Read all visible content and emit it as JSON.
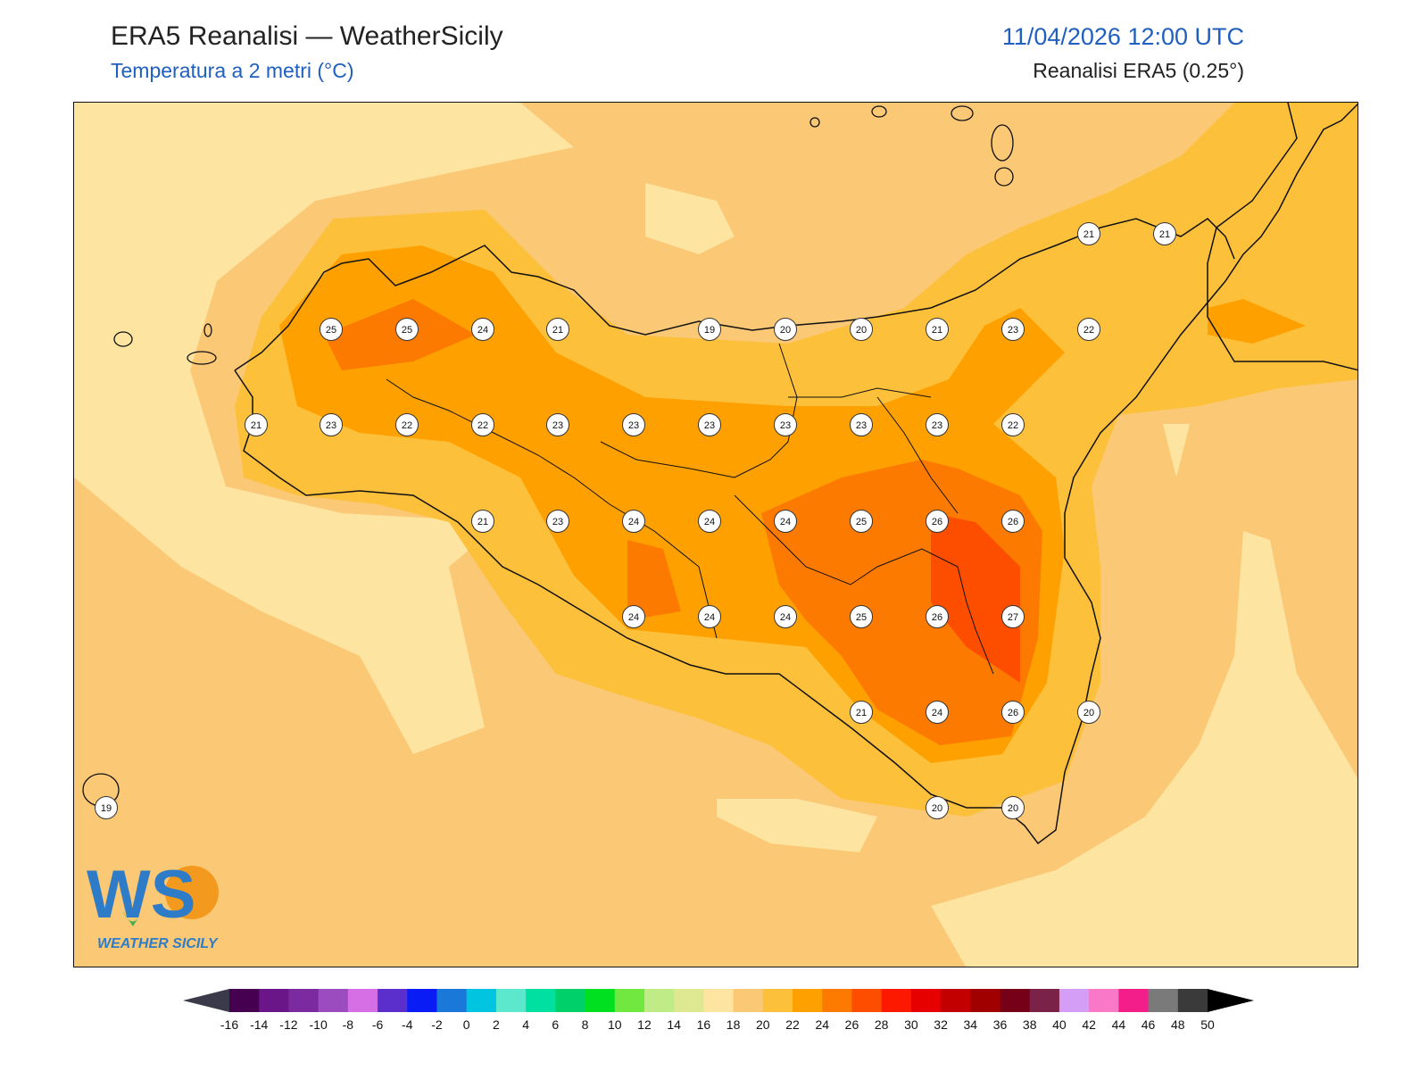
{
  "header": {
    "title": "ERA5 Reanalisi — WeatherSicily",
    "subtitle": "Temperatura a 2 metri (°C)",
    "datetime": "11/04/2026 12:00 UTC",
    "model": "Reanalisi ERA5 (0.25°)"
  },
  "map": {
    "region": "Sicily",
    "field": "2m temperature",
    "background_color": "#fbc875",
    "coast_color": "#111111",
    "station_values": [
      {
        "value": "25"
      },
      {
        "value": "25"
      },
      {
        "value": "24"
      },
      {
        "value": "21"
      },
      {
        "value": "19"
      },
      {
        "value": "20"
      },
      {
        "value": "20"
      },
      {
        "value": "21"
      },
      {
        "value": "23"
      },
      {
        "value": "22"
      },
      {
        "value": "21"
      },
      {
        "value": "23"
      },
      {
        "value": "22"
      },
      {
        "value": "22"
      },
      {
        "value": "23"
      },
      {
        "value": "23"
      },
      {
        "value": "23"
      },
      {
        "value": "23"
      },
      {
        "value": "23"
      },
      {
        "value": "23"
      },
      {
        "value": "22"
      },
      {
        "value": "21"
      },
      {
        "value": "23"
      },
      {
        "value": "24"
      },
      {
        "value": "24"
      },
      {
        "value": "24"
      },
      {
        "value": "25"
      },
      {
        "value": "26"
      },
      {
        "value": "26"
      },
      {
        "value": "24"
      },
      {
        "value": "24"
      },
      {
        "value": "24"
      },
      {
        "value": "25"
      },
      {
        "value": "26"
      },
      {
        "value": "27"
      },
      {
        "value": "21"
      },
      {
        "value": "24"
      },
      {
        "value": "26"
      },
      {
        "value": "20"
      },
      {
        "value": "20"
      },
      {
        "value": "20"
      },
      {
        "value": "21"
      },
      {
        "value": "21"
      },
      {
        "value": "19"
      }
    ]
  },
  "logo": {
    "text": "WS",
    "caption": "WEATHER SICILY",
    "colors": [
      "#2e7cc8",
      "#3fae4e",
      "#f39a1e"
    ]
  },
  "colorbar": {
    "ticks": [
      "-16",
      "-14",
      "-12",
      "-10",
      "-8",
      "-6",
      "-4",
      "-2",
      "0",
      "2",
      "4",
      "6",
      "8",
      "10",
      "12",
      "14",
      "16",
      "18",
      "20",
      "22",
      "24",
      "26",
      "28",
      "30",
      "32",
      "34",
      "36",
      "38",
      "40",
      "42",
      "44",
      "46",
      "48",
      "50"
    ],
    "under_color": "#3a3a4a",
    "over_color": "#000000",
    "colors": [
      "#45004f",
      "#6a1588",
      "#7b2aa0",
      "#9b4cbf",
      "#d66ee6",
      "#5b2fcc",
      "#0a1cf5",
      "#1a78d8",
      "#00c4e0",
      "#5be8cc",
      "#00e0a0",
      "#00d06a",
      "#00e020",
      "#70e840",
      "#c0ec88",
      "#dde890",
      "#fde4a0",
      "#fbc875",
      "#fdc03a",
      "#fda000",
      "#fd7a00",
      "#fd4e00",
      "#fd1800",
      "#e60000",
      "#c20000",
      "#a00000",
      "#760017",
      "#7a2248",
      "#d49ef6",
      "#fa78c8",
      "#f41e8a",
      "#7a7a7a",
      "#3a3a3a"
    ]
  }
}
